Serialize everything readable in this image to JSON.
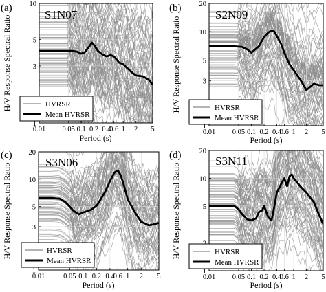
{
  "chart_data": [
    {
      "type": "line",
      "panel_label": "(a)",
      "station": "S1N07",
      "xlabel": "Period (s)",
      "ylabel": "H/V Response Spectral Ratio",
      "xscale": "log",
      "yscale": "log",
      "xlim": [
        0.01,
        5
      ],
      "ylim": [
        1,
        10
      ],
      "xticks": [
        "0.01",
        "0.05",
        "0.1",
        "0.2",
        "0.4",
        "0.6",
        "1",
        "2",
        "5"
      ],
      "yticks": [
        "1",
        "3",
        "5",
        "10"
      ],
      "grid": true,
      "legend_position": "bottom-left",
      "legend": [
        "HVRSR",
        "Mean HVRSR"
      ],
      "series": [
        {
          "name": "Mean HVRSR",
          "x": [
            0.01,
            0.02,
            0.04,
            0.06,
            0.08,
            0.1,
            0.12,
            0.15,
            0.18,
            0.2,
            0.25,
            0.3,
            0.4,
            0.5,
            0.6,
            0.8,
            1,
            1.5,
            2,
            3,
            4,
            5
          ],
          "y": [
            4.0,
            4.0,
            4.0,
            4.0,
            3.95,
            3.8,
            3.9,
            4.3,
            4.7,
            4.5,
            4.0,
            3.8,
            3.6,
            3.7,
            3.6,
            3.2,
            3.1,
            2.7,
            2.5,
            2.45,
            2.3,
            2.1
          ]
        }
      ]
    },
    {
      "type": "line",
      "panel_label": "(b)",
      "station": "S2N09",
      "xlabel": "Period (s)",
      "ylabel": "H/V Response Spectral Ratio",
      "xscale": "log",
      "yscale": "log",
      "xlim": [
        0.01,
        5
      ],
      "ylim": [
        1,
        20
      ],
      "xticks": [
        "0.01",
        "0.05",
        "0.1",
        "0.2",
        "0.4",
        "0.6",
        "1",
        "2",
        "5"
      ],
      "yticks": [
        "1",
        "3",
        "5",
        "10",
        "20"
      ],
      "grid": true,
      "legend_position": "bottom-left",
      "legend": [
        "HVRSR",
        "Mean HVRSR"
      ],
      "series": [
        {
          "name": "Mean HVRSR",
          "x": [
            0.01,
            0.02,
            0.04,
            0.06,
            0.08,
            0.1,
            0.15,
            0.2,
            0.25,
            0.3,
            0.35,
            0.4,
            0.5,
            0.6,
            0.8,
            1,
            1.5,
            2,
            3,
            4,
            5
          ],
          "y": [
            7.0,
            7.0,
            7.0,
            6.9,
            6.5,
            6.0,
            7.0,
            8.8,
            9.8,
            10.3,
            10.0,
            9.0,
            7.5,
            6.0,
            4.5,
            3.9,
            3.0,
            2.4,
            2.8,
            2.7,
            2.7
          ]
        }
      ]
    },
    {
      "type": "line",
      "panel_label": "(c)",
      "station": "S3N06",
      "xlabel": "Period (s)",
      "ylabel": "H/V Response Spectral Ratio",
      "xscale": "log",
      "yscale": "log",
      "xlim": [
        0.01,
        5
      ],
      "ylim": [
        1,
        20
      ],
      "xticks": [
        "0.01",
        "0.05",
        "0.1",
        "0.2",
        "0.4",
        "0.6",
        "1",
        "2",
        "5"
      ],
      "yticks": [
        "1",
        "3",
        "5",
        "10",
        "20"
      ],
      "grid": true,
      "legend_position": "bottom-left",
      "legend": [
        "HVRSR",
        "Mean HVRSR"
      ],
      "series": [
        {
          "name": "Mean HVRSR",
          "x": [
            0.01,
            0.02,
            0.03,
            0.04,
            0.05,
            0.06,
            0.08,
            0.1,
            0.15,
            0.2,
            0.3,
            0.4,
            0.5,
            0.6,
            0.7,
            0.8,
            1,
            1.5,
            2,
            3,
            4,
            5
          ],
          "y": [
            6.2,
            6.2,
            6.1,
            5.6,
            5.0,
            4.5,
            4.1,
            4.3,
            4.6,
            5.1,
            7.0,
            9.5,
            11.8,
            12.5,
            11.0,
            9.0,
            6.0,
            4.2,
            3.4,
            3.1,
            3.2,
            3.3
          ]
        }
      ]
    },
    {
      "type": "line",
      "panel_label": "(d)",
      "station": "S3N11",
      "xlabel": "Period (s)",
      "ylabel": "H/V Response Spectral Ratio",
      "xscale": "log",
      "yscale": "log",
      "xlim": [
        0.01,
        5
      ],
      "ylim": [
        1,
        20
      ],
      "xticks": [
        "0.01",
        "0.05",
        "0.1",
        "0.2",
        "0.4",
        "0.6",
        "1",
        "2",
        "5"
      ],
      "yticks": [
        "1",
        "2",
        "5",
        "10",
        "20"
      ],
      "grid": true,
      "legend_position": "bottom-left",
      "legend": [
        "HVRSR",
        "Mean HVRSR"
      ],
      "series": [
        {
          "name": "Mean HVRSR",
          "x": [
            0.01,
            0.02,
            0.04,
            0.05,
            0.06,
            0.08,
            0.1,
            0.13,
            0.15,
            0.18,
            0.2,
            0.25,
            0.3,
            0.35,
            0.4,
            0.5,
            0.6,
            0.7,
            0.8,
            0.9,
            1,
            1.5,
            2,
            3,
            4,
            5
          ],
          "y": [
            5.0,
            5.0,
            5.0,
            4.6,
            4.1,
            3.6,
            3.5,
            3.7,
            4.3,
            4.5,
            5.0,
            3.8,
            3.5,
            5.0,
            7.0,
            8.6,
            10.0,
            8.2,
            10.5,
            11.0,
            10.0,
            8.0,
            7.0,
            5.5,
            4.0,
            3.2
          ]
        }
      ]
    }
  ]
}
